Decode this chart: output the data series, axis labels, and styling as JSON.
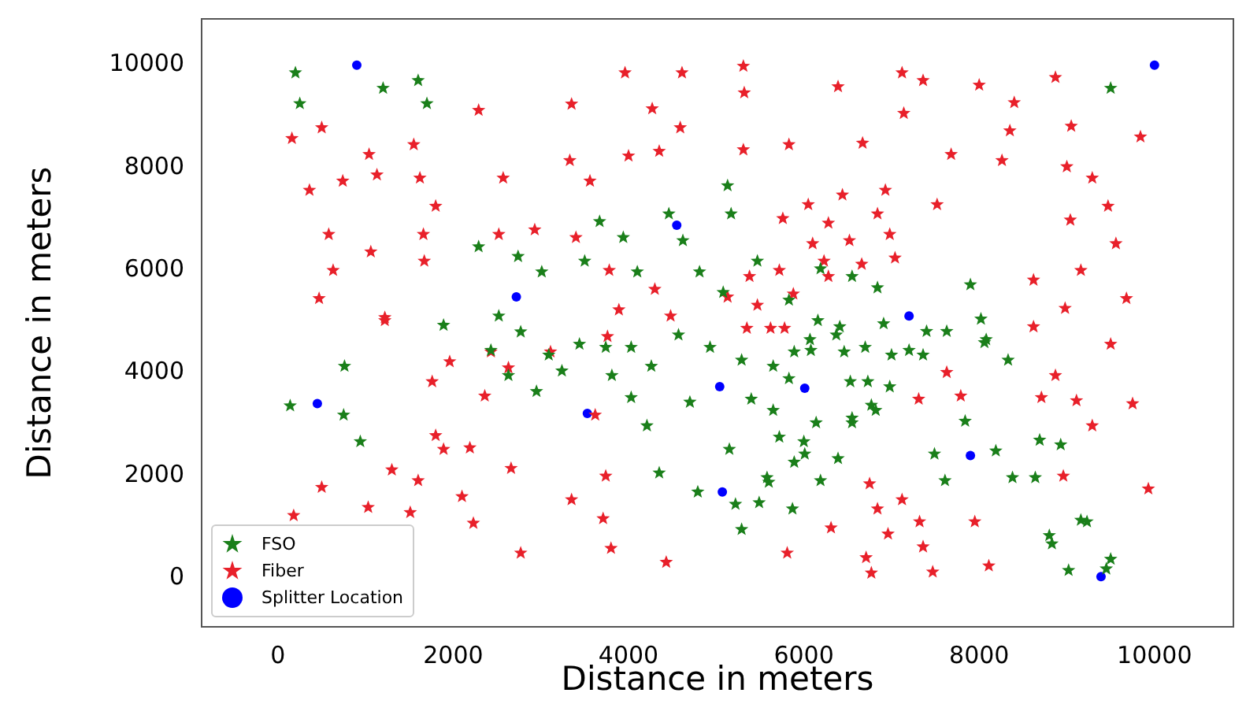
{
  "chart_data": {
    "type": "scatter",
    "xlabel": "Distance in meters",
    "ylabel": "Distance in meters",
    "xlim": [
      -870,
      10900
    ],
    "ylim": [
      -950,
      10900
    ],
    "xticks": [
      0,
      2000,
      4000,
      6000,
      8000,
      10000
    ],
    "yticks": [
      0,
      2000,
      4000,
      6000,
      8000,
      10000
    ],
    "grid": false,
    "legend": "bottom left",
    "series": [
      {
        "name": "FSO",
        "color": "#1a7f1a",
        "marker": "star",
        "x": [
          200,
          1600,
          250,
          1700,
          1200,
          9500,
          2290,
          2740,
          3010,
          3500,
          3670,
          3940,
          4100,
          4460,
          4620,
          5130,
          5170,
          4810,
          5080,
          5470,
          5830,
          6190,
          6550,
          6840,
          6910,
          6700,
          6370,
          6080,
          5830,
          5650,
          5400,
          5650,
          5290,
          4930,
          4570,
          4260,
          4030,
          3740,
          3440,
          3090,
          2770,
          2520,
          2430,
          2630,
          2950,
          3240,
          3810,
          4030,
          4210,
          4700,
          4350,
          4790,
          5220,
          5580,
          6010,
          6190,
          6390,
          6550,
          6820,
          7360,
          7630,
          7900,
          8020,
          8080,
          8330,
          8930,
          8640,
          9160,
          8830,
          9450,
          140,
          750,
          760,
          940,
          1890,
          8060,
          7840,
          7490,
          8190,
          7610,
          8380,
          8690,
          9230,
          8800,
          9500,
          9020,
          5290,
          5870,
          5490,
          5600,
          5890,
          5150,
          5720,
          6000,
          6140,
          6550,
          6770,
          6980,
          6530,
          6730,
          7000,
          7200,
          7400,
          6460,
          6070,
          5890,
          6410,
          6160
        ],
        "values": [
          9850,
          9700,
          9250,
          9250,
          9550,
          9550,
          6460,
          6270,
          5970,
          6180,
          6950,
          6640,
          5970,
          7100,
          6580,
          7650,
          7100,
          5970,
          5570,
          6180,
          5420,
          6030,
          5880,
          5660,
          4960,
          4500,
          4740,
          4440,
          3890,
          3270,
          3490,
          4130,
          4250,
          4500,
          4740,
          4130,
          4500,
          4500,
          4560,
          4350,
          4800,
          5110,
          4440,
          3950,
          3640,
          4040,
          3950,
          3520,
          2970,
          3430,
          2050,
          1680,
          1440,
          1960,
          2420,
          1900,
          2330,
          3030,
          3270,
          4350,
          4810,
          5720,
          5050,
          4650,
          4250,
          2600,
          1960,
          1130,
          670,
          180,
          3360,
          3180,
          4130,
          2660,
          4930,
          4590,
          3060,
          2420,
          2480,
          1900,
          1960,
          2690,
          1100,
          830,
          370,
          150,
          950,
          1350,
          1470,
          1870,
          2260,
          2510,
          2750,
          2660,
          3030,
          3120,
          3370,
          3730,
          3830,
          3830,
          4350,
          4440,
          4810,
          4410,
          4650,
          4410,
          4900,
          5020
        ]
      },
      {
        "name": "Fiber",
        "color": "#e8202a",
        "marker": "star",
        "x": [
          3960,
          4610,
          2290,
          3350,
          4270,
          4590,
          500,
          160,
          1550,
          1040,
          3330,
          4000,
          4350,
          740,
          1130,
          1620,
          2570,
          3560,
          360,
          1800,
          580,
          1660,
          2520,
          2930,
          3400,
          1060,
          1670,
          630,
          3780,
          470,
          1220,
          4300,
          4480,
          3890,
          5310,
          6390,
          7120,
          7360,
          8000,
          8870,
          5320,
          7140,
          8400,
          8350,
          9050,
          9840,
          5310,
          5830,
          6670,
          7680,
          8260,
          9000,
          9290,
          6440,
          6930,
          6050,
          7520,
          9470,
          5760,
          6840,
          9040,
          6280,
          6980,
          9560,
          6100,
          6520,
          7040,
          6230,
          6660,
          9160,
          8620,
          5380,
          5720,
          6280,
          9680,
          5880,
          8980,
          5130,
          5470,
          1220,
          3760,
          2430,
          3110,
          1960,
          2630,
          1760,
          2360,
          1800,
          1890,
          2190,
          1300,
          1600,
          2660,
          500,
          2100,
          1030,
          1510,
          3350,
          180,
          2230,
          3710,
          2770,
          3800,
          4430,
          3740,
          3620,
          5350,
          5620,
          5780,
          8620,
          9500,
          7630,
          8870,
          7310,
          7790,
          8710,
          9110,
          9750,
          9290,
          8960,
          9930,
          6750,
          7120,
          6840,
          7320,
          7950,
          6310,
          6960,
          7360,
          5810,
          6710,
          6770,
          7470,
          8110
        ],
        "values": [
          9850,
          9850,
          9120,
          9240,
          9150,
          8780,
          8780,
          8570,
          8450,
          8260,
          8140,
          8230,
          8320,
          7740,
          7860,
          7800,
          7800,
          7740,
          7560,
          7250,
          6700,
          6700,
          6700,
          6790,
          6640,
          6360,
          6180,
          6000,
          6000,
          5450,
          5080,
          5630,
          5110,
          5230,
          9980,
          9580,
          9850,
          9700,
          9610,
          9760,
          9460,
          9060,
          9270,
          8720,
          8810,
          8600,
          8350,
          8450,
          8480,
          8260,
          8140,
          8020,
          7800,
          7470,
          7560,
          7280,
          7280,
          7250,
          7010,
          7100,
          6980,
          6920,
          6700,
          6520,
          6520,
          6580,
          6240,
          6180,
          6120,
          6000,
          5810,
          5880,
          6000,
          5880,
          5450,
          5540,
          5260,
          5480,
          5320,
          5020,
          4710,
          4410,
          4410,
          4220,
          4100,
          3830,
          3550,
          2780,
          2510,
          2540,
          2110,
          1900,
          2140,
          1770,
          1590,
          1380,
          1280,
          1530,
          1220,
          1070,
          1160,
          490,
          580,
          310,
          1990,
          3180,
          4870,
          4870,
          4870,
          4900,
          4560,
          4010,
          3950,
          3490,
          3550,
          3520,
          3460,
          3400,
          2970,
          1990,
          1740,
          1840,
          1530,
          1350,
          1100,
          1100,
          980,
          860,
          610,
          490,
          400,
          100,
          120,
          240
        ]
      },
      {
        "name": "Splitter Location",
        "color": "#0000ff",
        "marker": "circle",
        "x": [
          900,
          10000,
          4550,
          2720,
          7200,
          450,
          3530,
          5040,
          6010,
          7900,
          5070,
          9390
        ],
        "values": [
          10000,
          10000,
          6880,
          5480,
          5110,
          3400,
          3210,
          3730,
          3700,
          2390,
          1680,
          30
        ]
      }
    ]
  }
}
